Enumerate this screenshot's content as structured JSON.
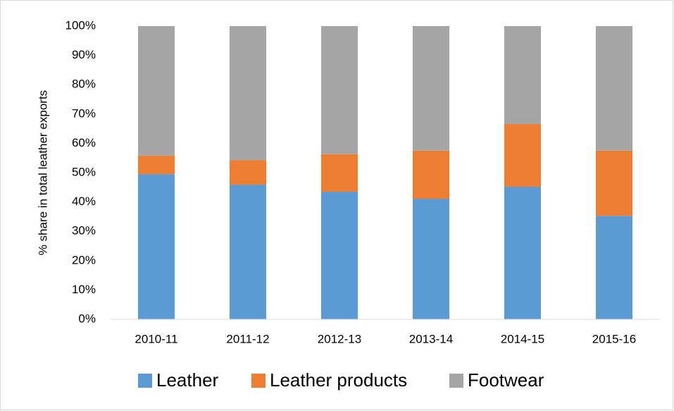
{
  "chart_data": {
    "type": "stacked_bar",
    "y_axis_label": "% share in total leather exports",
    "categories": [
      "2010-11",
      "2011-12",
      "2012-13",
      "2013-14",
      "2014-15",
      "2015-16"
    ],
    "series": [
      {
        "name": "Leather",
        "color": "#5b9bd5",
        "values": [
          49.5,
          45.9,
          43.5,
          41.1,
          45.2,
          35.3
        ]
      },
      {
        "name": "Leather products",
        "color": "#ed7d31",
        "values": [
          6.3,
          8.4,
          12.8,
          16.4,
          21.4,
          22.2
        ]
      },
      {
        "name": "Footwear",
        "color": "#a5a5a5",
        "values": [
          44.2,
          45.7,
          43.7,
          42.5,
          33.4,
          42.5
        ]
      }
    ],
    "ylim": [
      0,
      100
    ],
    "yticks": [
      {
        "value": 0,
        "label": "0%"
      },
      {
        "value": 10,
        "label": "10%"
      },
      {
        "value": 20,
        "label": "20%"
      },
      {
        "value": 30,
        "label": "30%"
      },
      {
        "value": 40,
        "label": "40%"
      },
      {
        "value": 50,
        "label": "50%"
      },
      {
        "value": 60,
        "label": "60%"
      },
      {
        "value": 70,
        "label": "70%"
      },
      {
        "value": 80,
        "label": "80%"
      },
      {
        "value": 90,
        "label": "90%"
      },
      {
        "value": 100,
        "label": "100%"
      }
    ],
    "legend": "bottom"
  }
}
